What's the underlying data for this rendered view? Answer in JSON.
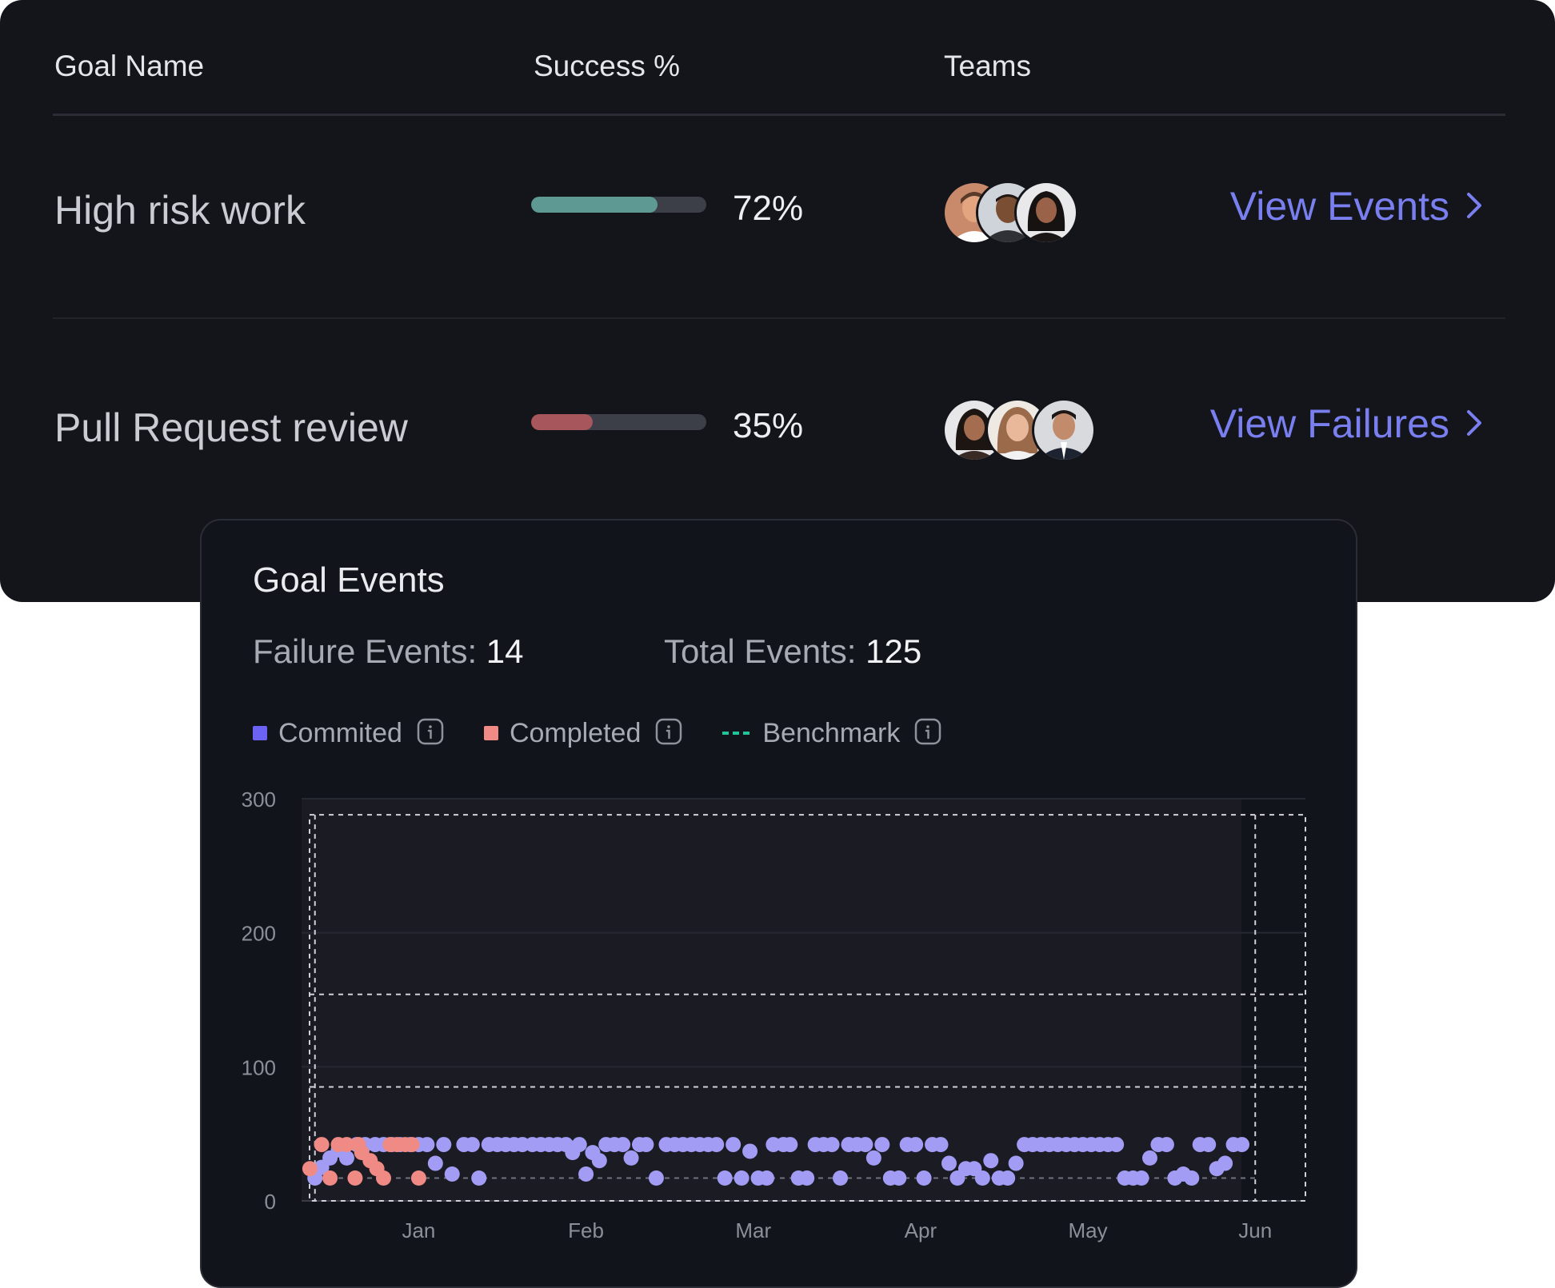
{
  "table": {
    "headers": {
      "goal_name": "Goal Name",
      "success": "Success %",
      "teams": "Teams"
    },
    "rows": [
      {
        "goal": "High risk work",
        "success_pct": 72,
        "success_label": "72%",
        "bar_color": "#5e9a93",
        "link": "View Events"
      },
      {
        "goal": "Pull Request review",
        "success_pct": 35,
        "success_label": "35%",
        "bar_color": "#a7565c",
        "link": "View Failures"
      }
    ]
  },
  "events": {
    "title": "Goal Events",
    "failure_label": "Failure Events:",
    "failure_value": "14",
    "total_label": "Total Events:",
    "total_value": "125",
    "legend": [
      {
        "label": "Commited",
        "color": "#6c63f5",
        "kind": "square"
      },
      {
        "label": "Completed",
        "color": "#f08a85",
        "kind": "square"
      },
      {
        "label": "Benchmark",
        "color": "#1fc49a",
        "kind": "dashed"
      }
    ]
  },
  "chart_data": {
    "type": "scatter",
    "xlabel": "",
    "ylabel": "",
    "ylim": [
      0,
      300
    ],
    "y_ticks": [
      "0",
      "100",
      "200",
      "300"
    ],
    "x_ticks": [
      "Jan",
      "Feb",
      "Mar",
      "Apr",
      "May",
      "Jun"
    ],
    "xlim": [
      0.3,
      6.3
    ],
    "grid": true,
    "series": [
      {
        "name": "Commited",
        "color": "#a29cf4",
        "points": [
          [
            0.38,
            17
          ],
          [
            0.42,
            25
          ],
          [
            0.47,
            32
          ],
          [
            0.52,
            38
          ],
          [
            0.57,
            32
          ],
          [
            0.63,
            42
          ],
          [
            0.68,
            42
          ],
          [
            0.74,
            42
          ],
          [
            0.79,
            42
          ],
          [
            0.84,
            42
          ],
          [
            0.89,
            42
          ],
          [
            0.95,
            42
          ],
          [
            1.0,
            42
          ],
          [
            1.05,
            42
          ],
          [
            1.1,
            28
          ],
          [
            1.15,
            42
          ],
          [
            1.2,
            20
          ],
          [
            1.27,
            42
          ],
          [
            1.32,
            42
          ],
          [
            1.36,
            17
          ],
          [
            1.42,
            42
          ],
          [
            1.47,
            42
          ],
          [
            1.52,
            42
          ],
          [
            1.57,
            42
          ],
          [
            1.62,
            42
          ],
          [
            1.68,
            42
          ],
          [
            1.73,
            42
          ],
          [
            1.78,
            42
          ],
          [
            1.83,
            42
          ],
          [
            1.88,
            42
          ],
          [
            1.92,
            36
          ],
          [
            1.96,
            42
          ],
          [
            2.0,
            20
          ],
          [
            2.04,
            36
          ],
          [
            2.08,
            30
          ],
          [
            2.12,
            42
          ],
          [
            2.17,
            42
          ],
          [
            2.22,
            42
          ],
          [
            2.27,
            32
          ],
          [
            2.32,
            42
          ],
          [
            2.36,
            42
          ],
          [
            2.42,
            17
          ],
          [
            2.48,
            42
          ],
          [
            2.53,
            42
          ],
          [
            2.58,
            42
          ],
          [
            2.63,
            42
          ],
          [
            2.68,
            42
          ],
          [
            2.73,
            42
          ],
          [
            2.78,
            42
          ],
          [
            2.83,
            17
          ],
          [
            2.88,
            42
          ],
          [
            2.93,
            17
          ],
          [
            2.98,
            37
          ],
          [
            3.03,
            17
          ],
          [
            3.08,
            17
          ],
          [
            3.12,
            42
          ],
          [
            3.18,
            42
          ],
          [
            3.22,
            42
          ],
          [
            3.27,
            17
          ],
          [
            3.32,
            17
          ],
          [
            3.37,
            42
          ],
          [
            3.42,
            42
          ],
          [
            3.47,
            42
          ],
          [
            3.52,
            17
          ],
          [
            3.57,
            42
          ],
          [
            3.62,
            42
          ],
          [
            3.67,
            42
          ],
          [
            3.72,
            32
          ],
          [
            3.77,
            42
          ],
          [
            3.82,
            17
          ],
          [
            3.87,
            17
          ],
          [
            3.92,
            42
          ],
          [
            3.97,
            42
          ],
          [
            4.02,
            17
          ],
          [
            4.07,
            42
          ],
          [
            4.12,
            42
          ],
          [
            4.17,
            28
          ],
          [
            4.22,
            17
          ],
          [
            4.27,
            24
          ],
          [
            4.32,
            24
          ],
          [
            4.37,
            17
          ],
          [
            4.42,
            30
          ],
          [
            4.47,
            17
          ],
          [
            4.52,
            17
          ],
          [
            4.57,
            28
          ],
          [
            4.62,
            42
          ],
          [
            4.67,
            42
          ],
          [
            4.72,
            42
          ],
          [
            4.77,
            42
          ],
          [
            4.82,
            42
          ],
          [
            4.87,
            42
          ],
          [
            4.92,
            42
          ],
          [
            4.97,
            42
          ],
          [
            5.02,
            42
          ],
          [
            5.07,
            42
          ],
          [
            5.12,
            42
          ],
          [
            5.17,
            42
          ],
          [
            5.22,
            17
          ],
          [
            5.27,
            17
          ],
          [
            5.32,
            17
          ],
          [
            5.37,
            32
          ],
          [
            5.42,
            42
          ],
          [
            5.47,
            42
          ],
          [
            5.52,
            17
          ],
          [
            5.57,
            20
          ],
          [
            5.62,
            17
          ],
          [
            5.67,
            42
          ],
          [
            5.72,
            42
          ],
          [
            5.77,
            24
          ],
          [
            5.82,
            28
          ],
          [
            5.87,
            42
          ],
          [
            5.92,
            42
          ]
        ]
      },
      {
        "name": "Completed",
        "color": "#f08a85",
        "points": [
          [
            0.35,
            24
          ],
          [
            0.42,
            42
          ],
          [
            0.47,
            17
          ],
          [
            0.52,
            42
          ],
          [
            0.57,
            42
          ],
          [
            0.62,
            17
          ],
          [
            0.66,
            36
          ],
          [
            0.71,
            30
          ],
          [
            0.75,
            24
          ],
          [
            0.79,
            17
          ],
          [
            0.83,
            42
          ],
          [
            0.87,
            42
          ],
          [
            0.92,
            42
          ],
          [
            0.96,
            42
          ],
          [
            1.0,
            17
          ],
          [
            0.64,
            42
          ]
        ]
      }
    ],
    "benchmark": {
      "name": "Benchmark",
      "color": "#1fc49a"
    }
  }
}
